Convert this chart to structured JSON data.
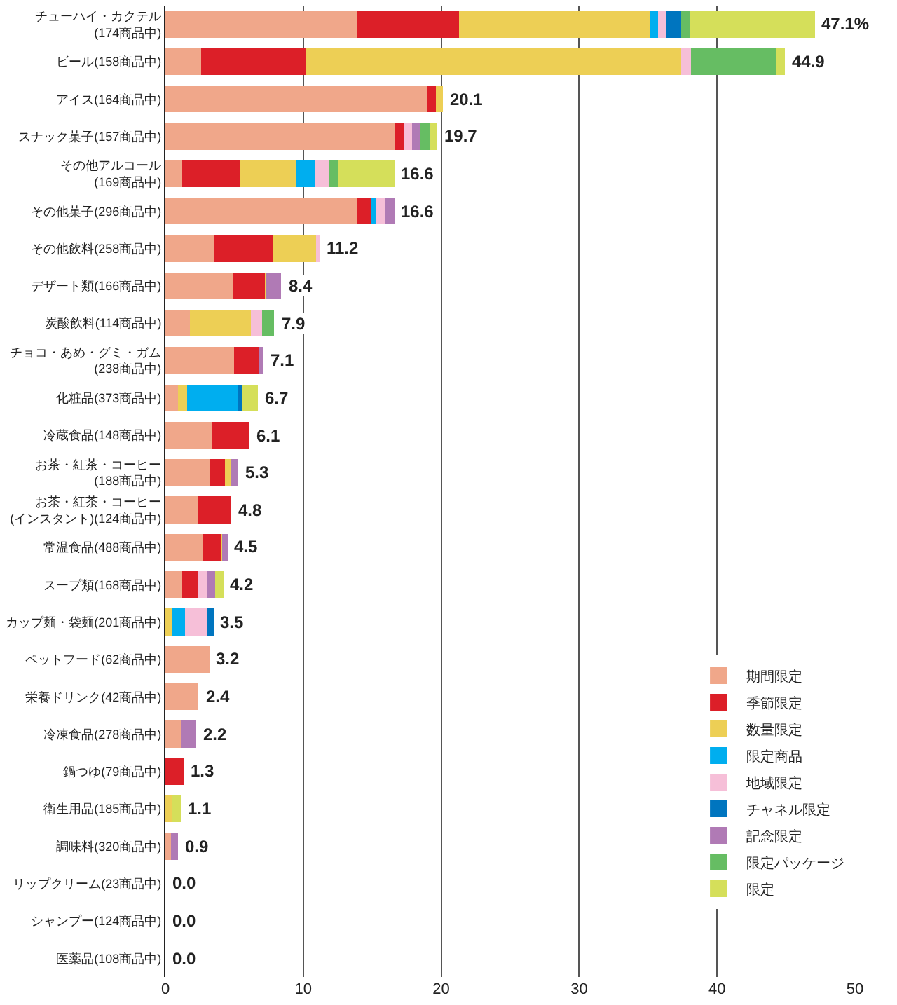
{
  "chart_data": {
    "type": "bar",
    "orientation": "horizontal",
    "stacked": true,
    "grid": "x",
    "legend": "bottom right",
    "categories": [
      "チューハイ・カクテル\n(174商品中)",
      "ビール(158商品中)",
      "アイス(164商品中)",
      "スナック菓子(157商品中)",
      "その他アルコール\n(169商品中)",
      "その他菓子(296商品中)",
      "その他飲料(258商品中)",
      "デザート類(166商品中)",
      "炭酸飲料(114商品中)",
      "チョコ・あめ・グミ・ガム\n(238商品中)",
      "化粧品(373商品中)",
      "冷蔵食品(148商品中)",
      "お茶・紅茶・コーヒー\n(188商品中)",
      "お茶・紅茶・コーヒー\n(インスタント)(124商品中)",
      "常温食品(488商品中)",
      "スープ類(168商品中)",
      "カップ麺・袋麺(201商品中)",
      "ペットフード(62商品中)",
      "栄養ドリンク(42商品中)",
      "冷凍食品(278商品中)",
      "鍋つゆ(79商品中)",
      "衛生用品(185商品中)",
      "調味料(320商品中)",
      "リップクリーム(23商品中)",
      "シャンプー(124商品中)",
      "医薬品(108商品中)"
    ],
    "series": [
      {
        "name": "期間限定",
        "color": "#f0a78a",
        "values": [
          13.9,
          2.6,
          19.0,
          16.6,
          1.2,
          13.9,
          3.5,
          4.9,
          1.8,
          5.0,
          0.9,
          3.4,
          3.2,
          2.4,
          2.7,
          1.2,
          0,
          3.2,
          2.4,
          1.1,
          0,
          0,
          0.4,
          0,
          0,
          0
        ]
      },
      {
        "name": "季節限定",
        "color": "#dc1f28",
        "values": [
          7.4,
          7.6,
          0.6,
          0.7,
          4.2,
          1.0,
          4.3,
          2.3,
          0,
          1.8,
          0,
          2.7,
          1.1,
          2.4,
          1.3,
          1.2,
          0,
          0,
          0,
          0,
          1.3,
          0,
          0,
          0,
          0,
          0
        ]
      },
      {
        "name": "数量限定",
        "color": "#edcf55",
        "values": [
          13.8,
          27.2,
          0.5,
          0,
          4.1,
          0,
          3.1,
          0.1,
          4.4,
          0,
          0.7,
          0,
          0.5,
          0,
          0.1,
          0,
          0.5,
          0,
          0,
          0,
          0,
          0.5,
          0,
          0,
          0,
          0
        ]
      },
      {
        "name": "限定商品",
        "color": "#00aeef",
        "values": [
          0.6,
          0,
          0,
          0,
          1.3,
          0.4,
          0,
          0,
          0,
          0,
          3.7,
          0,
          0,
          0,
          0,
          0,
          0.9,
          0,
          0,
          0,
          0,
          0,
          0,
          0,
          0,
          0
        ]
      },
      {
        "name": "地域限定",
        "color": "#f6bfd8",
        "values": [
          0.6,
          0.7,
          0,
          0.6,
          1.1,
          0.6,
          0.3,
          0,
          0.8,
          0,
          0,
          0,
          0,
          0,
          0,
          0.6,
          1.6,
          0,
          0,
          0,
          0,
          0,
          0,
          0,
          0,
          0
        ]
      },
      {
        "name": "チャネル限定",
        "color": "#0075bf",
        "values": [
          1.1,
          0,
          0,
          0,
          0,
          0,
          0,
          0,
          0,
          0,
          0.3,
          0,
          0,
          0,
          0,
          0,
          0.5,
          0,
          0,
          0,
          0,
          0,
          0,
          0,
          0,
          0
        ]
      },
      {
        "name": "記念限定",
        "color": "#b07ab5",
        "values": [
          0,
          0,
          0,
          0.6,
          0,
          0.7,
          0,
          1.1,
          0,
          0.3,
          0,
          0,
          0.5,
          0,
          0.4,
          0.6,
          0,
          0,
          0,
          1.1,
          0,
          0,
          0.5,
          0,
          0,
          0
        ]
      },
      {
        "name": "限定パッケージ",
        "color": "#66bd63",
        "values": [
          0.6,
          6.2,
          0,
          0.7,
          0.6,
          0,
          0,
          0,
          0.9,
          0,
          0,
          0,
          0,
          0,
          0,
          0,
          0,
          0,
          0,
          0,
          0,
          0,
          0,
          0,
          0,
          0
        ]
      },
      {
        "name": "限定",
        "color": "#d5df5a",
        "values": [
          9.1,
          0.6,
          0,
          0.5,
          4.1,
          0,
          0,
          0,
          0,
          0,
          1.1,
          0,
          0,
          0,
          0,
          0.6,
          0,
          0,
          0,
          0,
          0,
          0.6,
          0,
          0,
          0,
          0
        ]
      }
    ],
    "totals": [
      "47.1%",
      "44.9",
      "20.1",
      "19.7",
      "16.6",
      "16.6",
      "11.2",
      "8.4",
      "7.9",
      "7.1",
      "6.7",
      "6.1",
      "5.3",
      "4.8",
      "4.5",
      "4.2",
      "3.5",
      "3.2",
      "2.4",
      "2.2",
      "1.3",
      "1.1",
      "0.9",
      "0.0",
      "0.0",
      "0.0"
    ],
    "xlim": [
      0,
      50
    ],
    "xticks": [
      0,
      10,
      20,
      30,
      40,
      50
    ]
  }
}
